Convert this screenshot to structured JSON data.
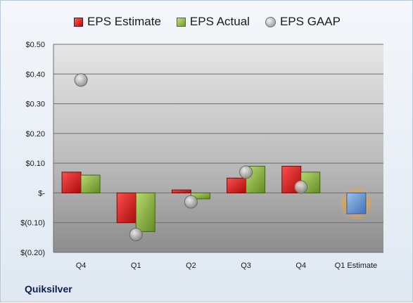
{
  "legend": {
    "estimate": "EPS Estimate",
    "actual": "EPS Actual",
    "gaap": "EPS GAAP"
  },
  "company": "Quiksilver",
  "chart_data": {
    "type": "bar",
    "categories": [
      "Q4",
      "Q1",
      "Q2",
      "Q3",
      "Q4",
      "Q1 Estimate"
    ],
    "series": [
      {
        "name": "EPS Estimate",
        "values": [
          0.07,
          -0.1,
          0.01,
          0.05,
          0.09,
          null
        ],
        "color": "#d01f1f"
      },
      {
        "name": "EPS Actual",
        "values": [
          0.06,
          -0.13,
          -0.02,
          0.09,
          0.07,
          null
        ],
        "color": "#8db446"
      },
      {
        "name": "EPS GAAP",
        "values": [
          0.38,
          -0.14,
          -0.03,
          0.07,
          0.02,
          null
        ],
        "color": "#a9a9a9",
        "marker": "circle"
      },
      {
        "name": "Q1 Estimate",
        "values": [
          null,
          null,
          null,
          null,
          null,
          -0.07
        ],
        "color": "#6f9fd8",
        "highlight": "#f3a23a"
      }
    ],
    "ylim": [
      -0.2,
      0.5
    ],
    "yticks": [
      0.5,
      0.4,
      0.3,
      0.2,
      0.1,
      0,
      -0.1,
      -0.2
    ],
    "ytick_labels": [
      "$0.50",
      "$0.40",
      "$0.30",
      "$0.20",
      "$0.10",
      "$-",
      "$(0.10)",
      "$(0.20)"
    ],
    "grid": true,
    "legend_position": "top"
  }
}
